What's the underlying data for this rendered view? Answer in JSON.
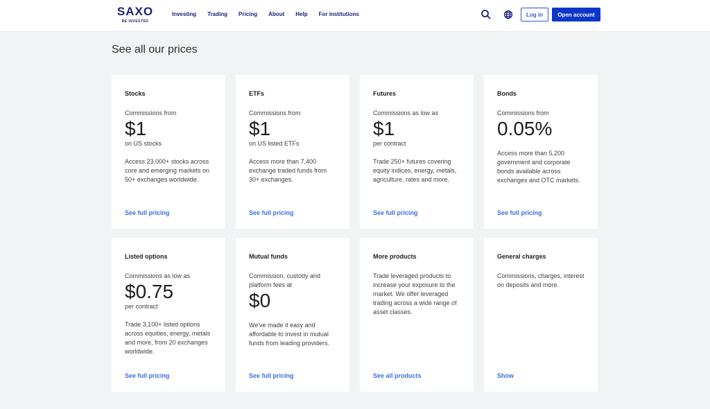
{
  "header": {
    "logo": {
      "wordmark": "SAXO",
      "tagline": "BE INVESTED"
    },
    "nav": [
      "Investing",
      "Trading",
      "Pricing",
      "About",
      "Help",
      "For institutions"
    ],
    "login": "Log in",
    "open_account": "Open account"
  },
  "page_title": "See all our prices",
  "cards": [
    {
      "title": "Stocks",
      "label": "Commissions from",
      "price": "$1",
      "sub": "on US stocks",
      "desc": "Access 23,000+ stocks across core and emerging markets on 50+ exchanges worldwide.",
      "link": "See full pricing"
    },
    {
      "title": "ETFs",
      "label": "Commissions from",
      "price": "$1",
      "sub": "on US listed ETFs",
      "desc": "Access more than 7,400 exchange traded funds from 30+ exchanges.",
      "link": "See full pricing"
    },
    {
      "title": "Futures",
      "label": "Commissions as low as",
      "price": "$1",
      "sub": "per contract",
      "desc": "Trade 250+ futures covering equity indices, energy, metals, agriculture, rates and more.",
      "link": "See full pricing"
    },
    {
      "title": "Bonds",
      "label": "Commissions from",
      "price": "0.05%",
      "sub": "",
      "desc": "Access more than 5,200 government and corporate bonds available across exchanges and OTC markets.",
      "link": "See full pricing"
    },
    {
      "title": "Listed options",
      "label": "Commissions as low as",
      "price": "$0.75",
      "sub": "per contract",
      "desc": "Trade 3,100+ listed options across equities, energy, metals and more, from 20 exchanges worldwide.",
      "link": "See full pricing"
    },
    {
      "title": "Mutual funds",
      "label": "Commission, custody and platform fees at",
      "price": "$0",
      "sub": "",
      "desc": "We've made it easy and affordable to invest in mutual funds from leading providers.",
      "link": "See full pricing"
    },
    {
      "title": "More products",
      "label": "",
      "price": "",
      "sub": "",
      "desc": "Trade leveraged products to increase your exposure to the market. We offer leveraged trading across a wide range of asset classes.",
      "link": "See all products"
    },
    {
      "title": "General charges",
      "label": "",
      "price": "",
      "sub": "",
      "desc": "Commissions, charges, interest on deposits and more.",
      "link": "Show"
    }
  ]
}
